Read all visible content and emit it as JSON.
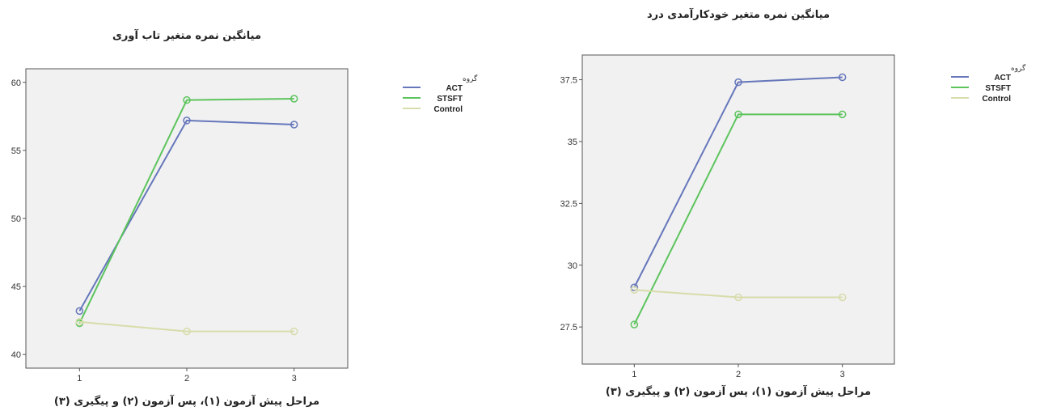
{
  "chart_data": [
    {
      "type": "line",
      "title": "میانگین نمره متغیر تاب آوری",
      "xlabel": "مراحل پیش آزمون (۱)، پس آزمون (۲) و پیگیری (۳)",
      "ylabel": "",
      "categories": [
        "1",
        "2",
        "3"
      ],
      "ylim": [
        39,
        61
      ],
      "yticks": [
        "40",
        "45",
        "50",
        "55",
        "60"
      ],
      "legend": {
        "title": "گروه",
        "placement": "right-outside"
      },
      "series": [
        {
          "name": "ACT",
          "color": "#6677bb",
          "values": [
            43.2,
            57.2,
            56.9
          ]
        },
        {
          "name": "STSFT",
          "color": "#5cc45c",
          "values": [
            42.3,
            58.7,
            58.8
          ]
        },
        {
          "name": "Control",
          "color": "#d8dcaa",
          "values": [
            42.4,
            41.7,
            41.7
          ]
        }
      ]
    },
    {
      "type": "line",
      "title": "میانگین نمره متغیر خودکارآمدی درد",
      "xlabel": "مراحل پیش آزمون (۱)، پس آزمون (۲) و پیگیری (۳)",
      "ylabel": "",
      "categories": [
        "1",
        "2",
        "3"
      ],
      "ylim": [
        26,
        38.5
      ],
      "yticks": [
        "27.5",
        "30",
        "32.5",
        "35",
        "37.5"
      ],
      "legend": {
        "title": "گروه",
        "placement": "right-outside"
      },
      "series": [
        {
          "name": "ACT",
          "color": "#6677bb",
          "values": [
            29.1,
            37.4,
            37.6
          ]
        },
        {
          "name": "STSFT",
          "color": "#5cc45c",
          "values": [
            27.6,
            36.1,
            36.1
          ]
        },
        {
          "name": "Control",
          "color": "#d8dcaa",
          "values": [
            29.0,
            28.7,
            28.7
          ]
        }
      ]
    }
  ]
}
